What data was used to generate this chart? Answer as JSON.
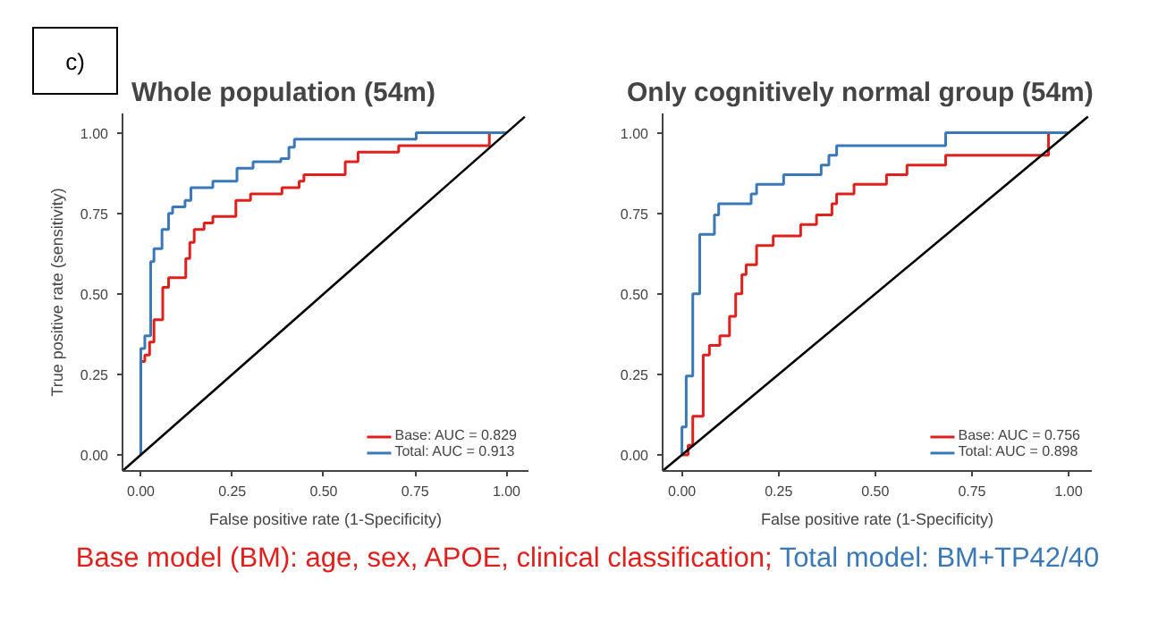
{
  "chart_data": [
    {
      "type": "step",
      "title": "Whole population (54m)",
      "xlabel": "False positive rate (1-Specificity)",
      "ylabel": "True positive rate (sensitivity)",
      "xlim": [
        -0.05,
        1.06
      ],
      "ylim": [
        -0.05,
        1.06
      ],
      "xticks": [
        {
          "value": 0,
          "label": "0.00"
        },
        {
          "value": 0.25,
          "label": "0.25"
        },
        {
          "value": 0.5,
          "label": "0.50"
        },
        {
          "value": 0.75,
          "label": "0.75"
        },
        {
          "value": 1,
          "label": "1.00"
        }
      ],
      "yticks": [
        {
          "value": 0,
          "label": "0.00"
        },
        {
          "value": 0.25,
          "label": "0.25"
        },
        {
          "value": 0.5,
          "label": "0.50"
        },
        {
          "value": 0.75,
          "label": "0.75"
        },
        {
          "value": 1,
          "label": "1.00"
        }
      ],
      "grid": false,
      "legend": "bottom right",
      "annotations": [
        "c)",
        "Base model (BM): age, sex, APOE, clinical classification;",
        "Total model: BM+TP42/40"
      ],
      "series": [
        {
          "name": "Base: AUC = 0.829",
          "color": "#e0201c",
          "x": [
            0,
            0,
            0.011,
            0.024,
            0.036,
            0.06,
            0.076,
            0.123,
            0.134,
            0.146,
            0.173,
            0.197,
            0.26,
            0.3,
            0.386,
            0.433,
            0.446,
            0.559,
            0.594,
            0.705,
            0.953,
            1.0
          ],
          "values": [
            0,
            0.29,
            0.31,
            0.35,
            0.42,
            0.52,
            0.55,
            0.61,
            0.66,
            0.7,
            0.72,
            0.74,
            0.79,
            0.81,
            0.83,
            0.85,
            0.87,
            0.91,
            0.94,
            0.96,
            1.0,
            1.0
          ]
        },
        {
          "name": "Total: AUC = 0.913",
          "color": "#3a78b8",
          "x": [
            0,
            0,
            0.011,
            0.027,
            0.036,
            0.058,
            0.076,
            0.087,
            0.121,
            0.137,
            0.197,
            0.263,
            0.307,
            0.383,
            0.405,
            0.42,
            0.753,
            1.0
          ],
          "values": [
            0,
            0.33,
            0.37,
            0.6,
            0.64,
            0.7,
            0.75,
            0.77,
            0.79,
            0.83,
            0.85,
            0.89,
            0.91,
            0.92,
            0.955,
            0.98,
            1.0,
            1.0
          ]
        },
        {
          "type": "line",
          "color": "#000000",
          "x": [
            -0.05,
            1.05
          ],
          "values": [
            -0.05,
            1.05
          ]
        }
      ]
    },
    {
      "type": "step",
      "title": "Only cognitively normal group (54m)",
      "xlabel": "False positive rate (1-Specificity)",
      "xlim": [
        -0.05,
        1.06
      ],
      "ylim": [
        -0.05,
        1.06
      ],
      "xticks": [
        {
          "value": 0,
          "label": "0.00"
        },
        {
          "value": 0.25,
          "label": "0.25"
        },
        {
          "value": 0.5,
          "label": "0.50"
        },
        {
          "value": 0.75,
          "label": "0.75"
        },
        {
          "value": 1,
          "label": "1.00"
        }
      ],
      "yticks": [
        {
          "value": 0,
          "label": "0.00"
        },
        {
          "value": 0.25,
          "label": "0.25"
        },
        {
          "value": 0.5,
          "label": "0.50"
        },
        {
          "value": 0.75,
          "label": "0.75"
        },
        {
          "value": 1,
          "label": "1.00"
        }
      ],
      "grid": false,
      "legend": "bottom right",
      "series": [
        {
          "name": "Base: AUC = 0.756",
          "color": "#e0201c",
          "x": [
            0,
            0.016,
            0.028,
            0.055,
            0.071,
            0.098,
            0.123,
            0.139,
            0.155,
            0.166,
            0.193,
            0.236,
            0.307,
            0.348,
            0.388,
            0.4,
            0.445,
            0.529,
            0.582,
            0.682,
            0.948,
            1.0
          ],
          "values": [
            0,
            0.03,
            0.12,
            0.31,
            0.34,
            0.37,
            0.43,
            0.5,
            0.56,
            0.59,
            0.65,
            0.68,
            0.715,
            0.745,
            0.78,
            0.81,
            0.84,
            0.87,
            0.9,
            0.93,
            1.0,
            1.0
          ]
        },
        {
          "name": "Total: AUC = 0.898",
          "color": "#3a78b8",
          "x": [
            0,
            0,
            0.011,
            0.028,
            0.046,
            0.084,
            0.095,
            0.179,
            0.193,
            0.263,
            0.36,
            0.38,
            0.4,
            0.682,
            1.0
          ],
          "values": [
            0,
            0.087,
            0.245,
            0.5,
            0.685,
            0.745,
            0.78,
            0.81,
            0.84,
            0.87,
            0.9,
            0.93,
            0.96,
            1.0,
            1.0
          ]
        },
        {
          "type": "line",
          "color": "#000000",
          "x": [
            -0.05,
            1.05
          ],
          "values": [
            -0.05,
            1.05
          ]
        }
      ]
    }
  ]
}
